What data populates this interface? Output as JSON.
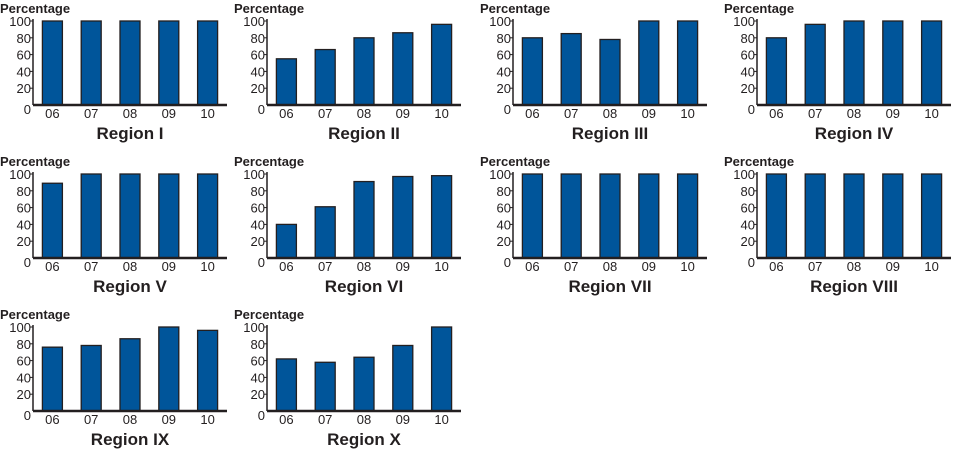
{
  "chart_data": {
    "type": "bar",
    "layout": "small multiples, 4 per row",
    "bar_color": "#00559a",
    "bar_outline": "#231f20",
    "grid": false,
    "legend": "none",
    "categories": [
      "06",
      "07",
      "08",
      "09",
      "10"
    ],
    "ylabel": "Percentage",
    "yticks": [
      0,
      20,
      40,
      60,
      80,
      100
    ],
    "ylim": [
      0,
      100
    ],
    "panels": [
      {
        "title": "Region I",
        "values": [
          100,
          100,
          100,
          100,
          100
        ]
      },
      {
        "title": "Region II",
        "values": [
          55,
          66,
          80,
          86,
          96
        ]
      },
      {
        "title": "Region III",
        "values": [
          80,
          85,
          78,
          100,
          100
        ]
      },
      {
        "title": "Region IV",
        "values": [
          80,
          96,
          100,
          100,
          100
        ]
      },
      {
        "title": "Region V",
        "values": [
          89,
          100,
          100,
          100,
          100
        ]
      },
      {
        "title": "Region VI",
        "values": [
          40,
          61,
          91,
          97,
          98
        ]
      },
      {
        "title": "Region VII",
        "values": [
          100,
          100,
          100,
          100,
          100
        ]
      },
      {
        "title": "Region VIII",
        "values": [
          100,
          100,
          100,
          100,
          100
        ]
      },
      {
        "title": "Region IX",
        "values": [
          76,
          78,
          86,
          100,
          96
        ]
      },
      {
        "title": "Region X",
        "values": [
          62,
          58,
          64,
          78,
          100
        ]
      }
    ]
  }
}
